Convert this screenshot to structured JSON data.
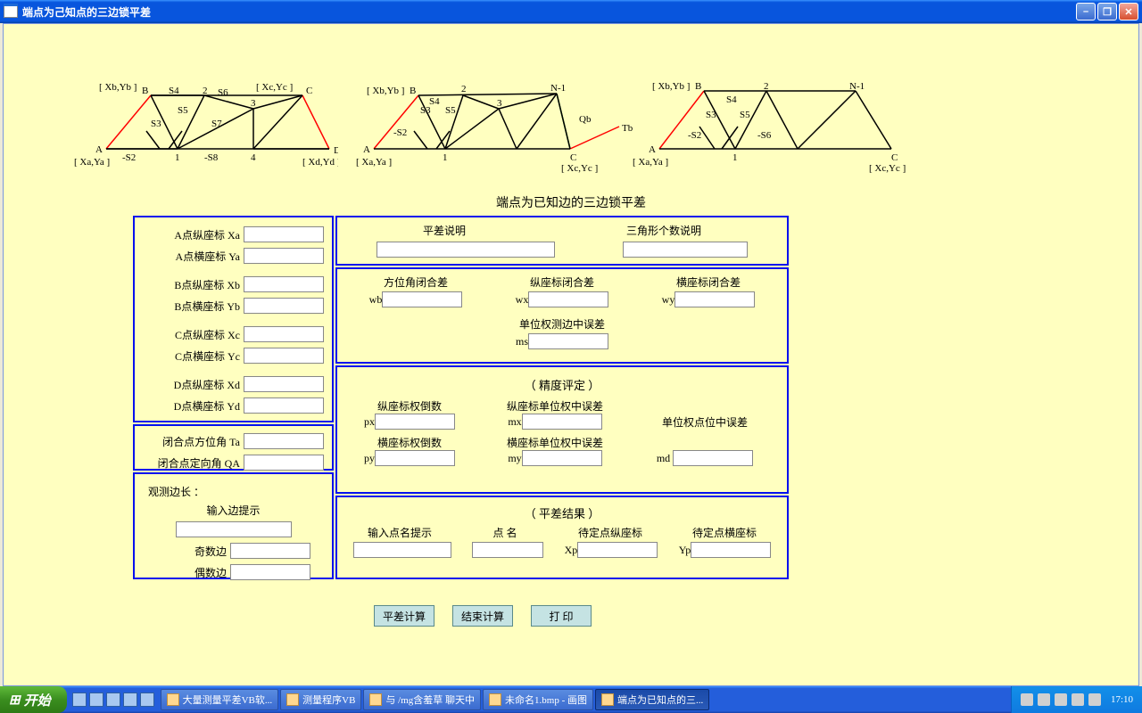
{
  "window": {
    "title": "端点为己知点的三边锁平差"
  },
  "subtitle": "端点为已知边的三边锁平差",
  "left_panel": {
    "coords": [
      {
        "label": "A点纵座标 Xa"
      },
      {
        "label": "A点横座标 Ya"
      },
      {
        "label": "B点纵座标 Xb"
      },
      {
        "label": "B点横座标 Yb"
      },
      {
        "label": "C点纵座标 Xc"
      },
      {
        "label": "C点横座标 Yc"
      },
      {
        "label": "D点纵座标 Xd"
      },
      {
        "label": "D点横座标 Yd"
      }
    ],
    "angles": [
      {
        "label": "闭合点方位角 Ta"
      },
      {
        "label": "闭合点定向角 QA"
      }
    ],
    "obs": {
      "title": "观测边长 ：",
      "hint": "输入边提示",
      "odd": "奇数边",
      "even": "偶数边"
    }
  },
  "right_panel": {
    "top": {
      "desc": "平差说明",
      "count": "三角形个数说明"
    },
    "closure": {
      "h1": "方位角闭合差",
      "h2": "纵座标闭合差",
      "h3": "横座标闭合差",
      "wb": "wb",
      "wx": "wx",
      "wy": "wy",
      "ms_label": "单位权测边中误差",
      "ms": "ms"
    },
    "precision": {
      "title": "（ 精度评定 ）",
      "h1": "纵座标权倒数",
      "h2": "纵座标单位权中误差",
      "h3": "横座标权倒数",
      "h4": "横座标单位权中误差",
      "h5": "单位权点位中误差",
      "px": "px",
      "mx": "mx",
      "py": "py",
      "my": "my",
      "md": "md"
    },
    "result": {
      "title": "（ 平差结果 ）",
      "h1": "输入点名提示",
      "h2": "点   名",
      "h3": "待定点纵座标",
      "h4": "待定点横座标",
      "xp": "Xp",
      "yp": "Yp"
    }
  },
  "buttons": {
    "calc": "平差计算",
    "end": "结束计算",
    "print": "打  印"
  },
  "taskbar": {
    "start": "开始",
    "items": [
      "大量测量平差VB软...",
      "测量程序VB",
      "与 /mg含羞草 聊天中",
      "未命名1.bmp - 画图",
      "端点为已知点的三..."
    ],
    "time": "17:10"
  },
  "diagrams": {
    "colors": {
      "stroke": "#000000",
      "red": "#ff0000",
      "green": "#008000"
    },
    "d1": {
      "labels": {
        "A": "A",
        "B": "B",
        "C": "C",
        "D": "D",
        "1": "1",
        "2": "2",
        "3": "3",
        "4": "4",
        "xA": "[ Xa,Ya ]",
        "xB": "[ Xb,Yb ]",
        "xC": "[ Xc,Yc ]",
        "xD": "[ Xd,Yd ]",
        "S2": "-S2",
        "S3": "S3",
        "S4": "S4",
        "S5": "S5",
        "S6": "S6",
        "S7": "S7",
        "S8": "-S8"
      }
    },
    "d2": {
      "labels": {
        "A": "A",
        "B": "B",
        "C": "C",
        "1": "1",
        "2": "2",
        "3": "3",
        "N1": "N-1",
        "Tb": "Tb",
        "Qb": "Qb",
        "xA": "[ Xa,Ya ]",
        "xB": "[ Xb,Yb ]",
        "xC": "[ Xc,Yc ]",
        "S2": "-S2",
        "S3": "S3",
        "S4": "S4",
        "S5": "S5"
      }
    },
    "d3": {
      "labels": {
        "A": "A",
        "B": "B",
        "C": "C",
        "1": "1",
        "2": "2",
        "N1": "N-1",
        "xA": "[ Xa,Ya ]",
        "xB": "[ Xb,Yb ]",
        "xC": "[ Xc,Yc ]",
        "S2": "-S2",
        "S3": "S3",
        "S4": "S4",
        "S5": "S5",
        "S6": "-S6"
      }
    }
  }
}
